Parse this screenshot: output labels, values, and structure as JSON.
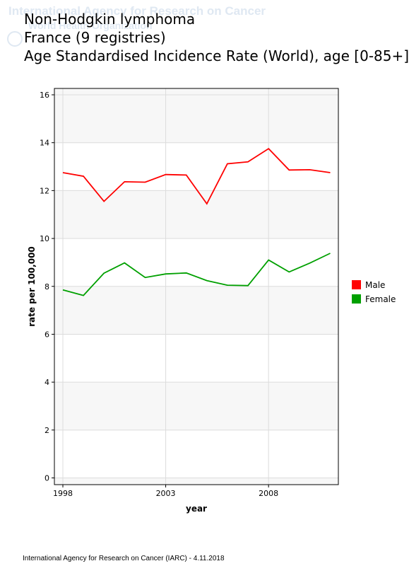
{
  "watermark": {
    "line1": "International Agency for Research on Cancer",
    "line2": "World Health Organization"
  },
  "title": {
    "line1": "Non-Hodgkin lymphoma",
    "line2": "France (9 registries)",
    "line3": "Age Standardised Incidence Rate (World), age [0-85+]"
  },
  "footer": "International Agency for Research on Cancer (IARC) - 4.11.2018",
  "chart_data": {
    "type": "line",
    "xlabel": "year",
    "ylabel": "rate per 100,000",
    "xlim": [
      1998,
      2011
    ],
    "ylim": [
      0,
      16
    ],
    "x_ticks": [
      1998,
      2003,
      2008
    ],
    "y_ticks": [
      0,
      2,
      4,
      6,
      8,
      10,
      12,
      14,
      16
    ],
    "grid": true,
    "legend_position": "right",
    "x": [
      1998,
      1999,
      2000,
      2001,
      2002,
      2003,
      2004,
      2005,
      2006,
      2007,
      2008,
      2009,
      2010,
      2011
    ],
    "series": [
      {
        "name": "Male",
        "color": "#ff0000",
        "values": [
          12.75,
          12.6,
          11.55,
          12.37,
          12.35,
          12.67,
          12.65,
          11.45,
          13.12,
          13.2,
          13.75,
          12.86,
          12.87,
          12.75
        ]
      },
      {
        "name": "Female",
        "color": "#00a000",
        "values": [
          7.85,
          7.62,
          8.55,
          8.98,
          8.37,
          8.52,
          8.56,
          8.24,
          8.05,
          8.03,
          9.1,
          8.6,
          8.97,
          9.38
        ]
      }
    ]
  }
}
